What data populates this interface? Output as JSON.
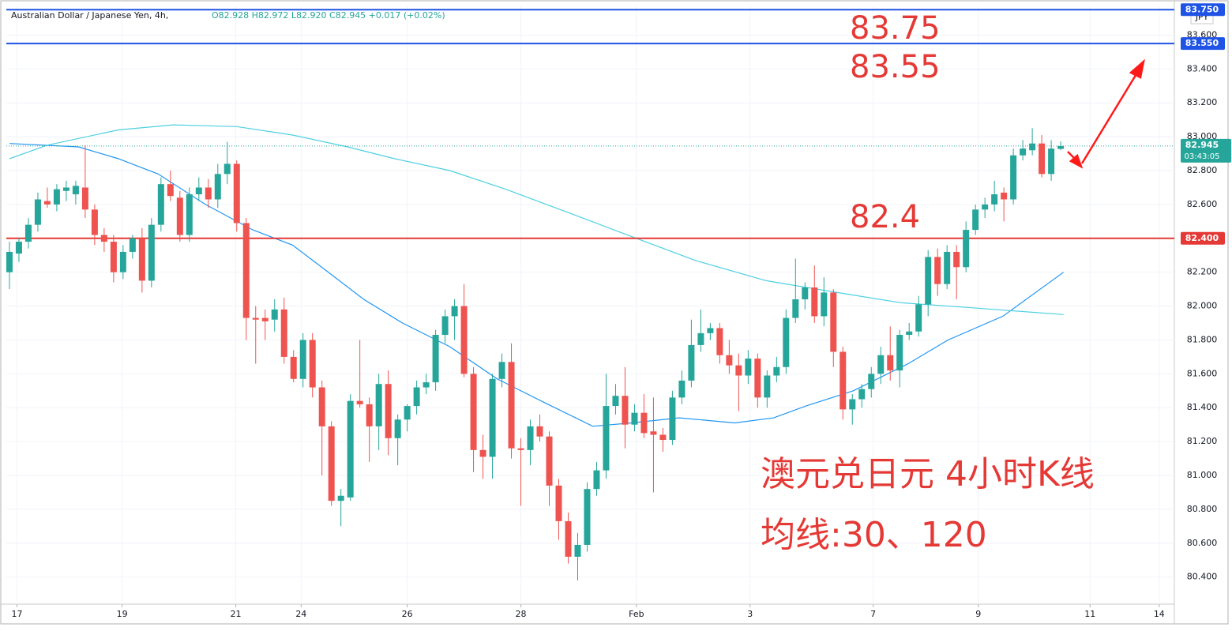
{
  "chart_data": {
    "type": "candlestick",
    "title": "Australian Dollar / Japanese Yen, 4h,",
    "ohlc_info": "O82.928 H82.972 L82.920 C82.945 +0.017 (+0.02%)",
    "currency": "JPY",
    "up_color": "#26a69a",
    "down_color": "#ef5350",
    "ylim": [
      80.24,
      83.77
    ],
    "xlim": [
      -0.33,
      123.0
    ],
    "yticks": [
      {
        "value": 80.4,
        "label": "80.400"
      },
      {
        "value": 80.6,
        "label": "80.600"
      },
      {
        "value": 80.8,
        "label": "80.800"
      },
      {
        "value": 81.0,
        "label": "81.000"
      },
      {
        "value": 81.2,
        "label": "81.200"
      },
      {
        "value": 81.4,
        "label": "81.400"
      },
      {
        "value": 81.6,
        "label": "81.600"
      },
      {
        "value": 81.8,
        "label": "81.800"
      },
      {
        "value": 82.0,
        "label": "82.000"
      },
      {
        "value": 82.2,
        "label": "82.200"
      },
      {
        "value": 82.4,
        "label": "82.400"
      },
      {
        "value": 82.6,
        "label": "82.600"
      },
      {
        "value": 82.8,
        "label": "82.800"
      },
      {
        "value": 83.0,
        "label": "83.000"
      },
      {
        "value": 83.2,
        "label": "83.200"
      },
      {
        "value": 83.4,
        "label": "83.400"
      },
      {
        "value": 83.6,
        "label": "83.600"
      }
    ],
    "xticks": [
      {
        "value": 0.8,
        "label": "17"
      },
      {
        "value": 11.9,
        "label": "19"
      },
      {
        "value": 23.9,
        "label": "21"
      },
      {
        "value": 30.8,
        "label": "24"
      },
      {
        "value": 42.0,
        "label": "26"
      },
      {
        "value": 54.0,
        "label": "28"
      },
      {
        "value": 66.2,
        "label": "Feb"
      },
      {
        "value": 78.2,
        "label": "3"
      },
      {
        "value": 91.2,
        "label": "7"
      },
      {
        "value": 102.3,
        "label": "9"
      },
      {
        "value": 114.1,
        "label": "11"
      },
      {
        "value": 121.4,
        "label": "14"
      }
    ],
    "grid": true,
    "ohlc": [
      [
        82.2,
        82.38,
        82.1,
        82.32
      ],
      [
        82.31,
        82.4,
        82.26,
        82.38
      ],
      [
        82.38,
        82.52,
        82.34,
        82.48
      ],
      [
        82.48,
        82.67,
        82.44,
        82.63
      ],
      [
        82.62,
        82.7,
        82.58,
        82.6
      ],
      [
        82.6,
        82.72,
        82.56,
        82.69
      ],
      [
        82.68,
        82.74,
        82.62,
        82.7
      ],
      [
        82.66,
        82.74,
        82.6,
        82.71
      ],
      [
        82.7,
        82.95,
        82.52,
        82.57
      ],
      [
        82.57,
        82.6,
        82.36,
        82.42
      ],
      [
        82.42,
        82.46,
        82.32,
        82.38
      ],
      [
        82.38,
        82.42,
        82.14,
        82.2
      ],
      [
        82.2,
        82.36,
        82.16,
        82.32
      ],
      [
        82.32,
        82.42,
        82.28,
        82.4
      ],
      [
        82.4,
        82.46,
        82.08,
        82.15
      ],
      [
        82.15,
        82.52,
        82.11,
        82.48
      ],
      [
        82.48,
        82.76,
        82.44,
        82.72
      ],
      [
        82.72,
        82.8,
        82.62,
        82.65
      ],
      [
        82.64,
        82.68,
        82.38,
        82.42
      ],
      [
        82.42,
        82.7,
        82.38,
        82.66
      ],
      [
        82.66,
        82.76,
        82.62,
        82.7
      ],
      [
        82.7,
        82.75,
        82.58,
        82.63
      ],
      [
        82.63,
        82.84,
        82.58,
        82.78
      ],
      [
        82.78,
        82.97,
        82.72,
        82.84
      ],
      [
        82.84,
        82.86,
        82.44,
        82.49
      ],
      [
        82.49,
        82.52,
        81.8,
        81.93
      ],
      [
        81.93,
        82.0,
        81.66,
        81.92
      ],
      [
        81.93,
        81.98,
        81.8,
        81.91
      ],
      [
        81.92,
        82.04,
        81.85,
        81.98
      ],
      [
        81.98,
        82.05,
        81.66,
        81.7
      ],
      [
        81.7,
        81.74,
        81.55,
        81.57
      ],
      [
        81.57,
        81.84,
        81.52,
        81.8
      ],
      [
        81.8,
        81.84,
        81.46,
        81.52
      ],
      [
        81.52,
        81.56,
        81.0,
        81.29
      ],
      [
        81.29,
        81.32,
        80.82,
        80.85
      ],
      [
        80.85,
        80.92,
        80.7,
        80.88
      ],
      [
        80.87,
        81.48,
        80.85,
        81.44
      ],
      [
        81.44,
        81.8,
        81.4,
        81.42
      ],
      [
        81.42,
        81.46,
        81.08,
        81.29
      ],
      [
        81.29,
        81.6,
        81.15,
        81.54
      ],
      [
        81.54,
        81.62,
        81.12,
        81.22
      ],
      [
        81.22,
        81.36,
        81.06,
        81.33
      ],
      [
        81.33,
        81.42,
        81.26,
        81.41
      ],
      [
        81.41,
        81.56,
        81.36,
        81.52
      ],
      [
        81.52,
        81.6,
        81.48,
        81.55
      ],
      [
        81.55,
        81.86,
        81.5,
        81.83
      ],
      [
        81.83,
        81.98,
        81.78,
        81.94
      ],
      [
        81.94,
        82.04,
        81.8,
        82.0
      ],
      [
        82.0,
        82.13,
        81.58,
        81.6
      ],
      [
        81.6,
        81.64,
        81.02,
        81.15
      ],
      [
        81.15,
        81.24,
        80.98,
        81.11
      ],
      [
        81.11,
        81.6,
        80.98,
        81.57
      ],
      [
        81.57,
        81.72,
        81.52,
        81.67
      ],
      [
        81.67,
        81.78,
        81.1,
        81.16
      ],
      [
        81.16,
        81.22,
        80.82,
        81.15
      ],
      [
        81.15,
        81.33,
        81.06,
        81.29
      ],
      [
        81.29,
        81.36,
        81.2,
        81.23
      ],
      [
        81.23,
        81.26,
        80.82,
        80.94
      ],
      [
        80.94,
        80.98,
        80.62,
        80.73
      ],
      [
        80.73,
        80.78,
        80.48,
        80.52
      ],
      [
        80.52,
        80.66,
        80.38,
        80.59
      ],
      [
        80.59,
        80.96,
        80.55,
        80.92
      ],
      [
        80.92,
        81.08,
        80.88,
        81.03
      ],
      [
        81.03,
        81.6,
        80.98,
        81.41
      ],
      [
        81.41,
        81.54,
        81.36,
        81.47
      ],
      [
        81.47,
        81.64,
        81.16,
        81.3
      ],
      [
        81.3,
        81.42,
        81.26,
        81.37
      ],
      [
        81.37,
        81.48,
        81.22,
        81.25
      ],
      [
        81.26,
        81.46,
        80.9,
        81.24
      ],
      [
        81.24,
        81.28,
        81.14,
        81.21
      ],
      [
        81.21,
        81.5,
        81.18,
        81.46
      ],
      [
        81.46,
        81.62,
        81.42,
        81.56
      ],
      [
        81.56,
        81.92,
        81.52,
        81.77
      ],
      [
        81.77,
        81.98,
        81.73,
        81.84
      ],
      [
        81.84,
        81.9,
        81.8,
        81.87
      ],
      [
        81.87,
        81.9,
        81.66,
        81.71
      ],
      [
        81.71,
        81.8,
        81.6,
        81.65
      ],
      [
        81.65,
        81.72,
        81.38,
        81.59
      ],
      [
        81.59,
        81.74,
        81.54,
        81.69
      ],
      [
        81.69,
        81.72,
        81.4,
        81.46
      ],
      [
        81.46,
        81.62,
        81.4,
        81.59
      ],
      [
        81.59,
        81.7,
        81.55,
        81.64
      ],
      [
        81.64,
        81.98,
        81.6,
        81.93
      ],
      [
        81.93,
        82.28,
        81.9,
        82.04
      ],
      [
        82.04,
        82.14,
        81.98,
        82.11
      ],
      [
        82.11,
        82.24,
        81.9,
        81.94
      ],
      [
        81.94,
        82.17,
        81.88,
        82.08
      ],
      [
        82.08,
        82.1,
        81.64,
        81.73
      ],
      [
        81.73,
        81.76,
        81.33,
        81.39
      ],
      [
        81.39,
        81.48,
        81.3,
        81.45
      ],
      [
        81.45,
        81.54,
        81.4,
        81.51
      ],
      [
        81.51,
        81.64,
        81.46,
        81.6
      ],
      [
        81.6,
        81.76,
        81.54,
        81.71
      ],
      [
        81.71,
        81.88,
        81.56,
        81.62
      ],
      [
        81.62,
        81.86,
        81.52,
        81.83
      ],
      [
        81.83,
        81.9,
        81.8,
        81.85
      ],
      [
        81.85,
        82.06,
        81.82,
        82.01
      ],
      [
        82.01,
        82.33,
        81.94,
        82.29
      ],
      [
        82.29,
        82.34,
        82.06,
        82.13
      ],
      [
        82.13,
        82.36,
        82.1,
        82.32
      ],
      [
        82.32,
        82.36,
        82.04,
        82.23
      ],
      [
        82.23,
        82.5,
        82.2,
        82.45
      ],
      [
        82.45,
        82.6,
        82.42,
        82.57
      ],
      [
        82.57,
        82.64,
        82.52,
        82.6
      ],
      [
        82.6,
        82.74,
        82.56,
        82.66
      ],
      [
        82.67,
        82.7,
        82.5,
        82.63
      ],
      [
        82.63,
        82.93,
        82.6,
        82.89
      ],
      [
        82.89,
        82.98,
        82.86,
        82.93
      ],
      [
        82.92,
        83.05,
        82.89,
        82.96
      ],
      [
        82.96,
        83.01,
        82.76,
        82.78
      ],
      [
        82.78,
        82.98,
        82.74,
        82.93
      ],
      [
        82.928,
        82.972,
        82.92,
        82.945
      ]
    ],
    "moving_averages": [
      {
        "color": "#2196f3",
        "x": [
          0,
          7.3,
          11.5,
          15.7,
          20.7,
          25.7,
          29.9,
          33.2,
          37.4,
          41.5,
          46.5,
          51.5,
          56.5,
          61.6,
          65.7,
          70.7,
          76.6,
          80.7,
          84.1,
          89.1,
          94.9,
          99.1,
          104.9,
          111.3
        ],
        "values": [
          82.96,
          82.94,
          82.87,
          82.78,
          82.6,
          82.45,
          82.36,
          82.22,
          82.04,
          81.9,
          81.76,
          81.57,
          81.43,
          81.29,
          81.31,
          81.34,
          81.31,
          81.34,
          81.41,
          81.5,
          81.66,
          81.8,
          81.94,
          82.2
        ]
      },
      {
        "color": "#4dd0e1",
        "x": [
          0,
          4.0,
          11.5,
          17.3,
          24.0,
          29.9,
          35.7,
          40.7,
          46.5,
          52.4,
          59.1,
          65.7,
          72.4,
          79.9,
          87.4,
          94.1,
          101.6,
          111.3
        ],
        "values": [
          82.87,
          82.95,
          83.04,
          83.07,
          83.06,
          83.01,
          82.94,
          82.87,
          82.8,
          82.69,
          82.55,
          82.41,
          82.27,
          82.15,
          82.08,
          82.02,
          81.99,
          81.95
        ]
      }
    ],
    "levels": [
      {
        "value": 83.75,
        "label": "83.750",
        "color": "#1e53e5"
      },
      {
        "value": 83.55,
        "label": "83.550",
        "color": "#1e53e5"
      },
      {
        "value": 82.4,
        "label": "82.400",
        "color": "#e53935"
      }
    ],
    "last_price": {
      "value": 82.945,
      "label": "82.945",
      "countdown": "03:43:05"
    },
    "annotations": [
      "83.75",
      "83.55",
      "82.4",
      "澳元兑日元 4小时K线",
      "均线:30、120"
    ]
  }
}
